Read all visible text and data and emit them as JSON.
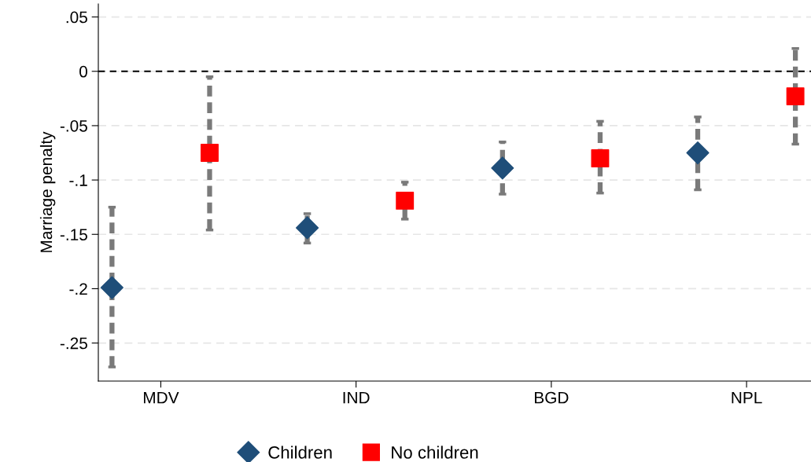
{
  "chart_data": {
    "type": "scatter",
    "ylabel": "Marriage penalty",
    "categories": [
      "MDV",
      "IND",
      "BGD",
      "NPL"
    ],
    "series": [
      {
        "name": "Children",
        "color": "#1f4e79",
        "marker": "diamond",
        "values": [
          -0.199,
          -0.144,
          -0.089,
          -0.075
        ],
        "errors": [
          [
            -0.272,
            -0.125
          ],
          [
            -0.158,
            -0.131
          ],
          [
            -0.113,
            -0.065
          ],
          [
            -0.109,
            -0.042
          ]
        ]
      },
      {
        "name": "No children",
        "color": "#ff0000",
        "marker": "square",
        "values": [
          -0.075,
          -0.119,
          -0.08,
          -0.023
        ],
        "errors": [
          [
            -0.146,
            -0.005
          ],
          [
            -0.136,
            -0.102
          ],
          [
            -0.112,
            -0.046
          ],
          [
            -0.067,
            0.021
          ]
        ]
      }
    ],
    "ylim": [
      -0.285,
      0.062
    ],
    "yticks": [
      {
        "value": 0.05,
        "label": ".05"
      },
      0,
      {
        "value": -0.05,
        "label": "-.05"
      },
      {
        "value": -0.1,
        "label": "-.1"
      },
      {
        "value": -0.15,
        "label": "-.15"
      },
      {
        "value": -0.2,
        "label": "-.2"
      },
      {
        "value": -0.25,
        "label": "-.25"
      }
    ],
    "ref_lines": [
      {
        "axis": "y",
        "value": 0,
        "color": "#000000",
        "line_style": "dashed"
      }
    ],
    "grid": "y",
    "legend": "bottom"
  }
}
